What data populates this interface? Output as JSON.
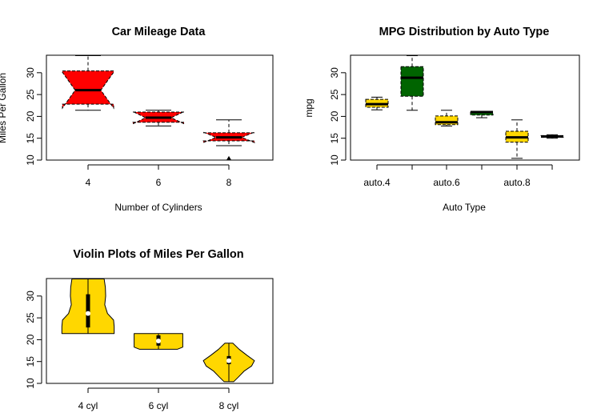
{
  "chart_data": [
    {
      "type": "boxplot",
      "variant": "notched",
      "title": "Car Mileage Data",
      "xlabel": "Number of Cylinders",
      "ylabel": "Miles Per Gallon",
      "categories": [
        "4",
        "6",
        "8"
      ],
      "yticks": [
        "10",
        "15",
        "20",
        "25",
        "30"
      ],
      "ylim": [
        10,
        34
      ],
      "fill_color": "#ff0000",
      "boxes": [
        {
          "category": "4",
          "min": 21.4,
          "q1": 22.8,
          "median": 26.0,
          "q3": 30.4,
          "max": 33.9,
          "notch": [
            21.9,
            30.1
          ],
          "outliers": []
        },
        {
          "category": "6",
          "min": 17.8,
          "q1": 18.65,
          "median": 19.7,
          "q3": 21.0,
          "max": 21.4,
          "notch": [
            18.3,
            21.1
          ],
          "outliers": []
        },
        {
          "category": "8",
          "min": 13.3,
          "q1": 14.4,
          "median": 15.2,
          "q3": 16.25,
          "max": 19.2,
          "notch": [
            14.0,
            16.4
          ],
          "outliers": [
            10.4
          ]
        }
      ]
    },
    {
      "type": "boxplot",
      "variant": "notched",
      "title": "MPG Distribution by Auto Type",
      "xlabel": "Auto Type",
      "ylabel": "mpg",
      "categories": [
        "auto.4",
        "",
        "auto.6",
        "",
        "auto.8",
        ""
      ],
      "yticks": [
        "10",
        "15",
        "20",
        "25",
        "30"
      ],
      "ylim": [
        10,
        34
      ],
      "boxes": [
        {
          "category": "auto.4",
          "color": "#ffd700",
          "min": 21.5,
          "q1": 22.1,
          "median": 22.8,
          "q3": 23.9,
          "max": 24.4
        },
        {
          "category": "",
          "color": "#006400",
          "min": 21.4,
          "q1": 24.6,
          "median": 28.85,
          "q3": 31.4,
          "max": 33.9
        },
        {
          "category": "auto.6",
          "color": "#ffd700",
          "min": 17.8,
          "q1": 18.1,
          "median": 18.65,
          "q3": 20.1,
          "max": 21.4
        },
        {
          "category": "",
          "color": "#006400",
          "min": 19.7,
          "q1": 20.3,
          "median": 21.0,
          "q3": 21.0,
          "max": 21.0
        },
        {
          "category": "auto.8",
          "color": "#ffd700",
          "min": 10.4,
          "q1": 14.1,
          "median": 15.2,
          "q3": 16.6,
          "max": 19.2
        },
        {
          "category": "",
          "color": "#006400",
          "min": 15.0,
          "q1": 15.2,
          "median": 15.4,
          "q3": 15.6,
          "max": 15.8
        }
      ]
    },
    {
      "type": "violin",
      "title": "Violin Plots of Miles Per Gallon",
      "xlabel": "",
      "ylabel": "",
      "categories": [
        "4 cyl",
        "6 cyl",
        "8 cyl"
      ],
      "yticks": [
        "10",
        "15",
        "20",
        "25",
        "30"
      ],
      "ylim": [
        10,
        34
      ],
      "fill_color": "#ffd700",
      "violins": [
        {
          "category": "4 cyl",
          "min": 21.4,
          "q1": 22.8,
          "median": 26.0,
          "q3": 30.4,
          "max": 33.9,
          "density": [
            [
              21.4,
              0.86
            ],
            [
              23.0,
              0.86
            ],
            [
              24.5,
              0.84
            ],
            [
              26.0,
              0.64
            ],
            [
              28.0,
              0.55
            ],
            [
              30.0,
              0.58
            ],
            [
              32.0,
              0.57
            ],
            [
              33.9,
              0.53
            ]
          ]
        },
        {
          "category": "6 cyl",
          "min": 17.8,
          "q1": 18.65,
          "median": 19.7,
          "q3": 21.0,
          "max": 21.4,
          "density": [
            [
              17.8,
              0.62
            ],
            [
              18.3,
              0.8
            ],
            [
              19.0,
              0.8
            ],
            [
              20.0,
              0.8
            ],
            [
              21.0,
              0.8
            ],
            [
              21.4,
              0.8
            ]
          ]
        },
        {
          "category": "8 cyl",
          "min": 10.4,
          "q1": 14.4,
          "median": 15.2,
          "q3": 16.25,
          "max": 19.2,
          "density": [
            [
              10.4,
              0.16
            ],
            [
              11.5,
              0.32
            ],
            [
              12.8,
              0.5
            ],
            [
              14.0,
              0.75
            ],
            [
              15.2,
              0.84
            ],
            [
              16.4,
              0.6
            ],
            [
              17.8,
              0.34
            ],
            [
              19.2,
              0.13
            ]
          ]
        }
      ]
    }
  ]
}
